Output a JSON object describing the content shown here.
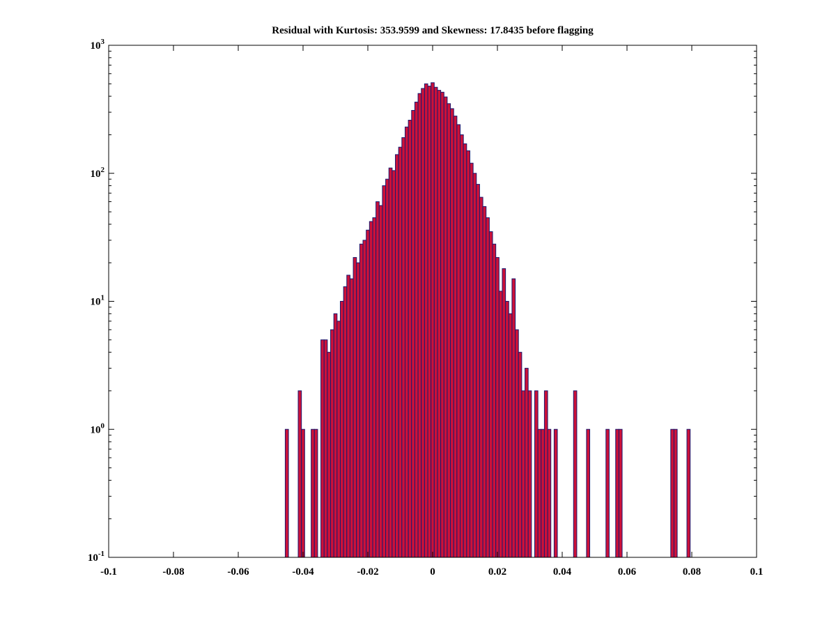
{
  "title": "Residual with Kurtosis: 353.9599 and Skewness: 17.8435 before flagging",
  "colors": {
    "bar_fill": "#cc1139",
    "bar_edge": "#1a1a70",
    "axis": "#000000",
    "background": "#ffffff"
  },
  "chart_data": {
    "type": "bar",
    "subtype": "histogram",
    "title": "Residual with Kurtosis: 353.9599 and Skewness: 17.8435 before flagging",
    "xlabel": "",
    "ylabel": "",
    "legend": "none",
    "grid": "off",
    "x_axis": {
      "min": -0.1,
      "max": 0.1,
      "ticks": [
        -0.1,
        -0.08,
        -0.06,
        -0.04,
        -0.02,
        0,
        0.02,
        0.04,
        0.06,
        0.08,
        0.1
      ],
      "tick_labels": [
        "-0.1",
        "-0.08",
        "-0.06",
        "-0.04",
        "-0.02",
        "0",
        "0.02",
        "0.04",
        "0.06",
        "0.08",
        "0.1"
      ]
    },
    "y_axis": {
      "scale": "log",
      "min_exp": -1,
      "max_exp": 3,
      "tick_base": "10",
      "tick_exponents": [
        -1,
        0,
        1,
        2,
        3
      ],
      "tick_labels": [
        "10^-1",
        "10^0",
        "10^1",
        "10^2",
        "10^3"
      ]
    },
    "bins": {
      "start": -0.045,
      "width": 0.001,
      "counts": [
        1,
        0,
        0,
        0,
        2,
        1,
        0,
        0,
        1,
        1,
        0,
        5,
        5,
        4,
        6,
        8,
        7,
        10,
        13,
        16,
        15,
        22,
        20,
        28,
        30,
        36,
        42,
        45,
        60,
        56,
        80,
        90,
        110,
        105,
        140,
        160,
        190,
        230,
        260,
        310,
        360,
        420,
        460,
        500,
        480,
        510,
        470,
        445,
        430,
        395,
        350,
        320,
        280,
        240,
        200,
        170,
        150,
        120,
        100,
        82,
        65,
        55,
        45,
        35,
        28,
        22,
        12,
        18,
        10,
        8,
        15,
        6,
        4,
        2,
        3,
        2,
        0,
        2,
        1,
        1,
        2,
        1,
        0,
        1,
        0,
        0,
        0,
        0,
        0,
        2,
        0,
        0,
        0,
        1,
        0,
        0,
        0,
        0,
        0,
        1,
        0,
        0,
        1,
        1,
        0,
        0,
        0,
        0,
        0,
        0,
        0,
        0,
        0,
        0,
        0,
        0,
        0,
        0,
        0,
        1,
        1,
        0,
        0,
        0,
        1,
        0
      ]
    }
  }
}
